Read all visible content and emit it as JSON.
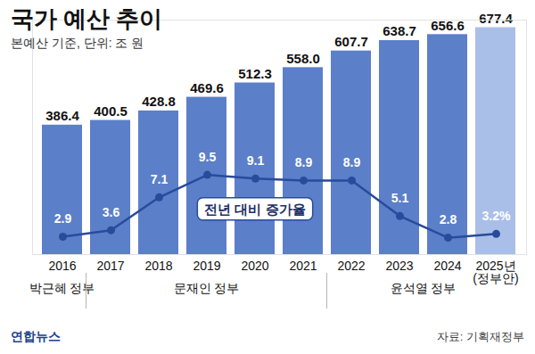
{
  "chart_data": {
    "type": "bar",
    "title": "국가 예산 추이",
    "subtitle": "본예산 기준, 단위: 조 원",
    "categories": [
      "2016",
      "2017",
      "2018",
      "2019",
      "2020",
      "2021",
      "2022",
      "2023",
      "2024",
      "2025년\n(정부안)"
    ],
    "series": [
      {
        "type": "bar",
        "colors": [
          "#5b7fc9",
          "#5b7fc9",
          "#5b7fc9",
          "#5b7fc9",
          "#5b7fc9",
          "#5b7fc9",
          "#5b7fc9",
          "#5b7fc9",
          "#5b7fc9",
          "#aabfe8"
        ],
        "values": [
          386.4,
          400.5,
          428.8,
          469.6,
          512.3,
          558.0,
          607.7,
          638.7,
          656.6,
          677.4
        ],
        "value_labels": [
          "386.4",
          "400.5",
          "428.8",
          "469.6",
          "512.3",
          "558.0",
          "607.7",
          "638.7",
          "656.6",
          "677.4"
        ],
        "data_labels": true
      },
      {
        "type": "line",
        "name": "전년 대비 증가율",
        "axis": "y2",
        "color": "#2a4b9b",
        "marker": "circle",
        "values": [
          2.9,
          3.6,
          7.1,
          9.5,
          9.1,
          8.9,
          8.9,
          5.1,
          2.8,
          3.2
        ],
        "value_labels": [
          "2.9",
          "3.6",
          "7.1",
          "9.5",
          "9.1",
          "8.9",
          "8.9",
          "5.1",
          "2.8",
          "3.2%"
        ],
        "data_labels": true
      }
    ],
    "ylim": [
      0,
      700
    ],
    "y2lim": [
      1,
      26
    ],
    "tick_labels": "x",
    "grid": false,
    "periods": [
      {
        "label": "박근혜 정부",
        "from": "2016",
        "to": "2016"
      },
      {
        "label": "문재인 정부",
        "from": "2017",
        "to": "2021"
      },
      {
        "label": "윤석열 정부",
        "from": "2022",
        "to": "2025년\n(정부안)"
      }
    ],
    "logo": "연합뉴스",
    "source": "자료: 기획재정부"
  }
}
